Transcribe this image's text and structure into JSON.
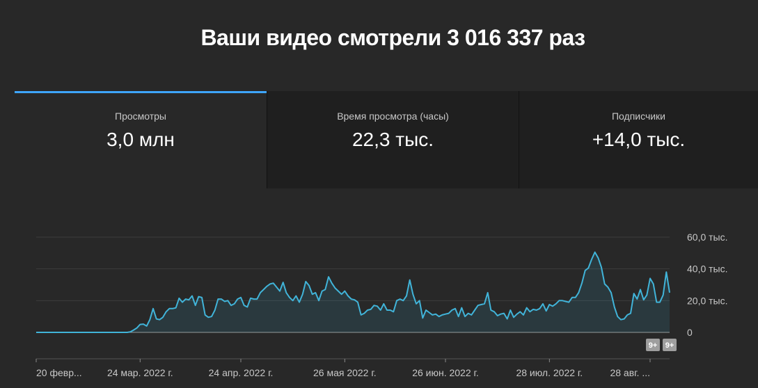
{
  "headline": "Ваши видео смотрели 3 016 337 раз",
  "tabs": [
    {
      "label": "Просмотры",
      "value": "3,0 млн",
      "active": true
    },
    {
      "label": "Время просмотра (часы)",
      "value": "22,3 тыс.",
      "active": false
    },
    {
      "label": "Подписчики",
      "value": "+14,0 тыс.",
      "active": false
    }
  ],
  "badges": [
    "9+",
    "9+"
  ],
  "colors": {
    "accent": "#3ea6ff",
    "line": "#41b4d9"
  },
  "chart_data": {
    "type": "area",
    "title": "",
    "xlabel": "",
    "ylabel": "",
    "ylim": [
      0,
      60000
    ],
    "y_ticks": [
      {
        "value": 0,
        "label": "0"
      },
      {
        "value": 20000,
        "label": "20,0 тыс."
      },
      {
        "value": 40000,
        "label": "40,0 тыс."
      },
      {
        "value": 60000,
        "label": "60,0 тыс."
      }
    ],
    "x_ticks": [
      {
        "day": 0,
        "label": "20 февр..."
      },
      {
        "day": 32,
        "label": "24 мар. 2022 г."
      },
      {
        "day": 63,
        "label": "24 апр. 2022 г."
      },
      {
        "day": 95,
        "label": "26 мая 2022 г."
      },
      {
        "day": 126,
        "label": "26 июн. 2022 г."
      },
      {
        "day": 158,
        "label": "28 июл. 2022 г."
      },
      {
        "day": 189,
        "label": "28 авг. ..."
      }
    ],
    "grid": true,
    "series": [
      {
        "values": [
          0,
          0,
          0,
          0,
          0,
          0,
          0,
          0,
          0,
          0,
          0,
          0,
          0,
          0,
          0,
          0,
          0,
          0,
          0,
          0,
          0,
          0,
          0,
          0,
          0,
          0,
          0,
          0,
          0,
          300,
          1500,
          2800,
          5000,
          5200,
          4000,
          8000,
          15000,
          8500,
          8000,
          9500,
          13000,
          15000,
          15000,
          15500,
          21500,
          19000,
          21000,
          20500,
          23000,
          17000,
          22500,
          22000,
          11000,
          9500,
          10000,
          14000,
          21000,
          21000,
          19500,
          20000,
          17000,
          18000,
          21000,
          22000,
          17000,
          16000,
          21500,
          21000,
          21000,
          25000,
          27000,
          29000,
          30500,
          31000,
          28500,
          26000,
          31500,
          25000,
          22000,
          20000,
          23000,
          19000,
          24000,
          32000,
          29500,
          24000,
          25000,
          20000,
          26000,
          27000,
          35000,
          31000,
          28000,
          26000,
          24000,
          26000,
          23000,
          21000,
          20500,
          19000,
          11000,
          12000,
          14000,
          14500,
          17000,
          16500,
          14000,
          18000,
          14000,
          14000,
          13000,
          20000,
          21000,
          20000,
          23000,
          33000,
          24000,
          18000,
          20000,
          9000,
          14000,
          12500,
          11000,
          11500,
          10000,
          11000,
          11500,
          12000,
          14000,
          15000,
          10000,
          15500,
          10000,
          12000,
          11000,
          14000,
          17000,
          17500,
          18000,
          25000,
          14000,
          13000,
          10500,
          11500,
          12000,
          8500,
          14000,
          9500,
          11500,
          13000,
          11000,
          15500,
          13000,
          14500,
          14000,
          15000,
          18000,
          13500,
          17500,
          16500,
          18000,
          20000,
          20000,
          19500,
          19000,
          22000,
          22000,
          25000,
          31000,
          39000,
          40500,
          46000,
          50500,
          47000,
          41000,
          30500,
          28500,
          25000,
          16000,
          10000,
          8000,
          8500,
          11000,
          12000,
          24500,
          21000,
          27000,
          20500,
          23500,
          34000,
          30500,
          19000,
          19000,
          23500,
          38000,
          25000
        ]
      }
    ]
  }
}
